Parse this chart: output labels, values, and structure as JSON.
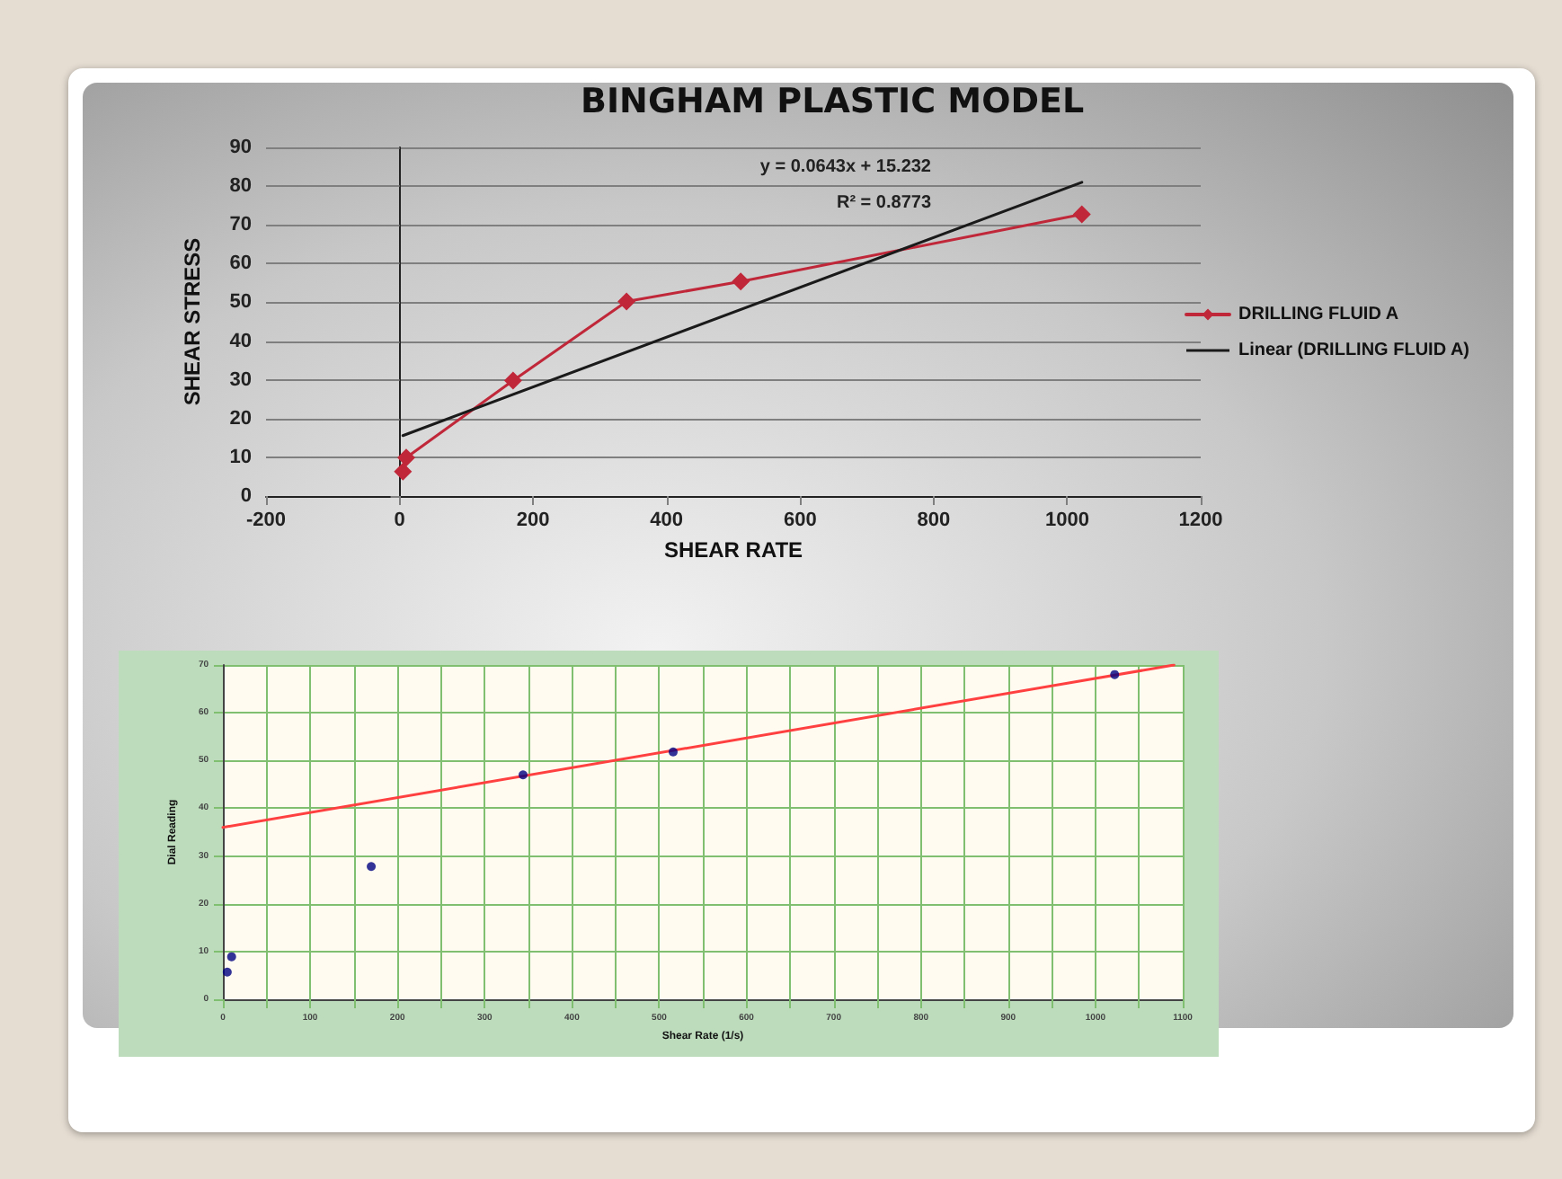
{
  "chart_data": [
    {
      "type": "line",
      "title": "BINGHAM PLASTIC MODEL",
      "xlabel": "SHEAR RATE",
      "ylabel": "SHEAR STRESS",
      "x": [
        5,
        10,
        170,
        340,
        511,
        1022
      ],
      "series": [
        {
          "name": "DRILLING FLUID A",
          "color": "#c0283a",
          "values": [
            6.3,
            9.9,
            29.8,
            50.2,
            55.4,
            72.7
          ],
          "marker": "diamond"
        },
        {
          "name": "Linear (DRILLING FLUID A)",
          "type": "line",
          "color": "#1a1a1a",
          "x": [
            5,
            1022
          ],
          "values": [
            15.6,
            81
          ],
          "marker": "none"
        }
      ],
      "annotations": [
        "y = 0.0643x + 15.232",
        "R² = 0.8773"
      ],
      "xlim": [
        -200,
        1200
      ],
      "xticks": [
        -200,
        0,
        200,
        400,
        600,
        800,
        1000,
        1200
      ],
      "ylim": [
        0,
        90
      ],
      "yticks": [
        0,
        10,
        20,
        30,
        40,
        50,
        60,
        70,
        80,
        90
      ],
      "grid": "y",
      "legend": "right"
    },
    {
      "type": "scatter",
      "xlabel": "Shear Rate (1/s)",
      "ylabel": "Dial Reading",
      "x": [
        5,
        10,
        170,
        344,
        516,
        1022
      ],
      "series": [
        {
          "color": "#000080",
          "values": [
            5.7,
            8.9,
            27.8,
            47,
            51.8,
            68
          ]
        },
        {
          "type": "line",
          "color": "#ff4040",
          "x": [
            0,
            1090
          ],
          "values": [
            36,
            70
          ],
          "marker": "none"
        }
      ],
      "xlim": [
        0,
        1100
      ],
      "xticks": [
        0,
        {
          "value": 50,
          "label": null
        },
        100,
        {
          "value": 150,
          "label": null
        },
        200,
        {
          "value": 250,
          "label": null
        },
        300,
        {
          "value": 350,
          "label": null
        },
        400,
        {
          "value": 450,
          "label": null
        },
        500,
        {
          "value": 550,
          "label": null
        },
        600,
        {
          "value": 650,
          "label": null
        },
        700,
        {
          "value": 750,
          "label": null
        },
        800,
        {
          "value": 850,
          "label": null
        },
        900,
        {
          "value": 950,
          "label": null
        },
        1000,
        {
          "value": 1050,
          "label": null
        },
        1100
      ],
      "ylim": [
        0,
        70
      ],
      "yticks": [
        0,
        10,
        20,
        30,
        40,
        50,
        60,
        70
      ],
      "grid": true
    }
  ]
}
